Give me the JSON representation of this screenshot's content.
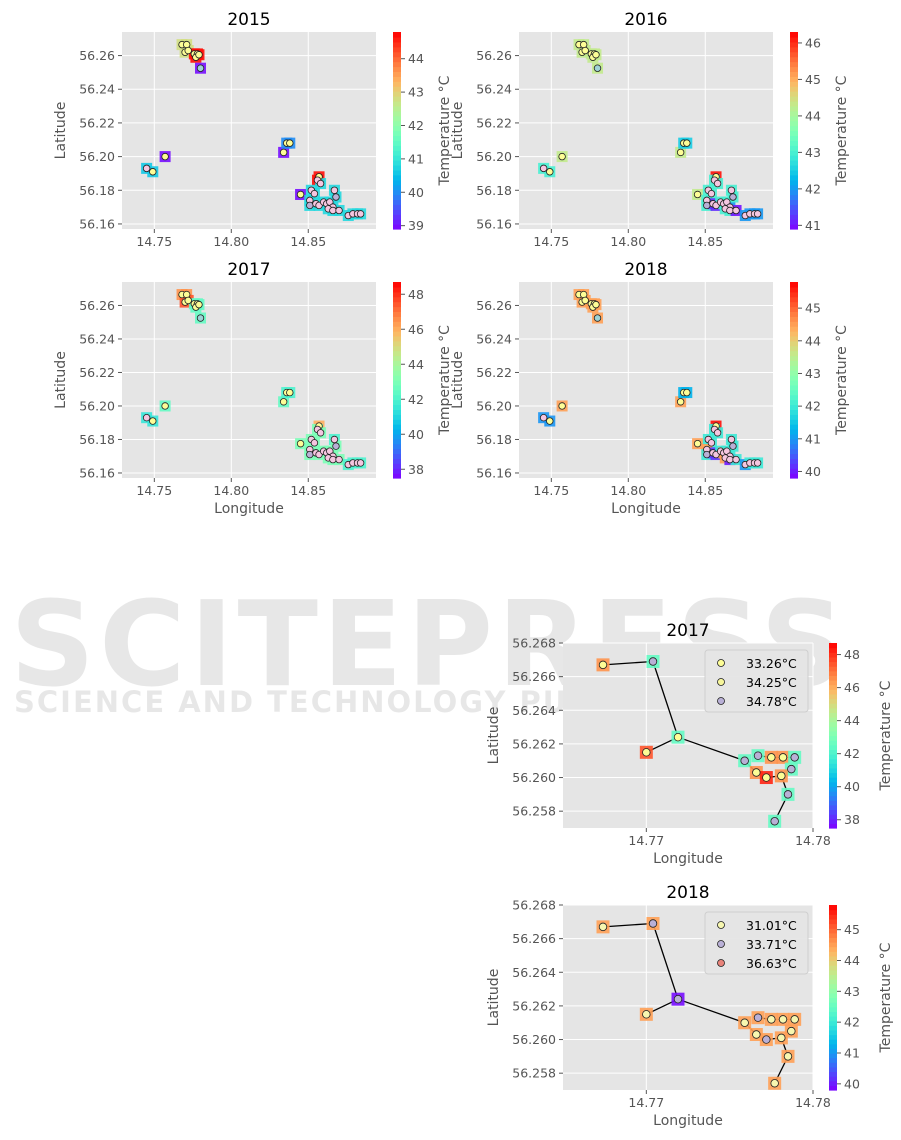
{
  "watermark": {
    "main": "SCITEPRESS",
    "sub": "SCIENCE AND TECHNOLOGY PUBLICATIONS"
  },
  "chart_data": [
    {
      "type": "scatter",
      "title": "2015",
      "xlabel": "",
      "ylabel": "Latitude",
      "colorbar_label": "Temperature °C",
      "xlim": [
        14.729,
        14.894
      ],
      "ylim": [
        56.157,
        56.274
      ],
      "xticks": [
        14.75,
        14.8,
        14.85
      ],
      "yticks": [
        56.16,
        56.18,
        56.2,
        56.22,
        56.24,
        56.26
      ],
      "clim": [
        38.9,
        44.8
      ],
      "cticks": [
        39,
        40,
        41,
        42,
        43,
        44
      ],
      "grid": true,
      "colormap": "rainbow",
      "temps": [
        42.8,
        42.8,
        42.8,
        42.8,
        44.7,
        44.7,
        44.7,
        44.7,
        39,
        40.6,
        40.6,
        39,
        39,
        40,
        40,
        39,
        44.7,
        44.7,
        40.8,
        40.8,
        40.8,
        40.8,
        40.8,
        40.8,
        40.8,
        40.8,
        40.8,
        40.8,
        40.8,
        40.8,
        40.8,
        40.8,
        40.8,
        40.8,
        40.8,
        40.8,
        40.8,
        40.8
      ]
    },
    {
      "type": "scatter",
      "title": "2016",
      "xlabel": "",
      "ylabel": "Latitude",
      "colorbar_label": "Temperature °C",
      "xlim": [
        14.729,
        14.894
      ],
      "ylim": [
        56.157,
        56.274
      ],
      "xticks": [
        14.75,
        14.8,
        14.85
      ],
      "yticks": [
        56.16,
        56.18,
        56.2,
        56.22,
        56.24,
        56.26
      ],
      "clim": [
        40.9,
        46.3
      ],
      "cticks": [
        41,
        42,
        43,
        44,
        45,
        46
      ],
      "grid": true,
      "colormap": "rainbow",
      "temps": [
        44.3,
        44.3,
        44.3,
        44.3,
        44.3,
        44.3,
        44.3,
        44.3,
        44.3,
        43,
        43,
        44.3,
        44.3,
        42.5,
        42.5,
        44.3,
        46.2,
        43,
        43,
        43,
        43,
        43,
        43,
        41.2,
        41.2,
        43,
        43,
        43,
        42,
        43,
        43,
        43,
        43,
        41,
        42,
        42,
        42,
        42
      ]
    },
    {
      "type": "scatter",
      "title": "2017",
      "xlabel": "Longitude",
      "ylabel": "Latitude",
      "colorbar_label": "Temperature °C",
      "xlim": [
        14.729,
        14.894
      ],
      "ylim": [
        56.157,
        56.274
      ],
      "xticks": [
        14.75,
        14.8,
        14.85
      ],
      "yticks": [
        56.16,
        56.18,
        56.2,
        56.22,
        56.24,
        56.26
      ],
      "clim": [
        37.5,
        48.7
      ],
      "cticks": [
        38,
        40,
        42,
        44,
        46,
        48
      ],
      "grid": true,
      "colormap": "rainbow",
      "temps": [
        46.5,
        46.5,
        47.5,
        47.5,
        42.5,
        42.5,
        42.5,
        42.5,
        42.5,
        41.5,
        41.5,
        42.5,
        42.5,
        42,
        42,
        43,
        46,
        43,
        43,
        43,
        43,
        43,
        43,
        43,
        43,
        43,
        43,
        43,
        43,
        42,
        43,
        43,
        43,
        43,
        42,
        42,
        42,
        42
      ]
    },
    {
      "type": "scatter",
      "title": "2018",
      "xlabel": "Longitude",
      "ylabel": "Latitude",
      "colorbar_label": "Temperature °C",
      "xlim": [
        14.729,
        14.894
      ],
      "ylim": [
        56.157,
        56.274
      ],
      "xticks": [
        14.75,
        14.8,
        14.85
      ],
      "yticks": [
        56.16,
        56.18,
        56.2,
        56.22,
        56.24,
        56.26
      ],
      "clim": [
        39.8,
        45.8
      ],
      "cticks": [
        40,
        41,
        42,
        43,
        44,
        45
      ],
      "grid": true,
      "colormap": "rainbow",
      "temps": [
        44.5,
        44.5,
        44.5,
        44.5,
        44.5,
        44.5,
        44.5,
        44.5,
        44.5,
        41,
        41,
        44.5,
        44.5,
        41.3,
        41.3,
        44.5,
        45.7,
        42,
        42,
        42,
        42,
        44.5,
        42,
        40.2,
        40.2,
        42,
        44.5,
        42,
        42,
        42,
        42,
        44.5,
        40,
        42,
        41,
        42,
        42,
        42
      ]
    },
    {
      "type": "scatter",
      "title": "2017",
      "xlabel": "Longitude",
      "ylabel": "Latitude",
      "colorbar_label": "Temperature °C",
      "xlim": [
        14.765,
        14.78
      ],
      "ylim": [
        56.257,
        56.268
      ],
      "xticks": [
        14.77,
        14.78
      ],
      "yticks": [
        56.258,
        56.26,
        56.262,
        56.264,
        56.266,
        56.268
      ],
      "clim": [
        37.5,
        48.7
      ],
      "cticks": [
        38,
        40,
        42,
        44,
        46,
        48
      ],
      "grid": true,
      "colormap": "rainbow",
      "legend_position": "upper right",
      "legend": [
        {
          "label": "33.26°C",
          "color": "#fdfd96"
        },
        {
          "label": "34.25°C",
          "color": "#f6f59a"
        },
        {
          "label": "34.78°C",
          "color": "#b9b0d6"
        }
      ],
      "points": [
        [
          14.7674,
          56.2667,
          46.5,
          0
        ],
        [
          14.7704,
          56.2669,
          42.5,
          2
        ],
        [
          14.7719,
          56.2624,
          42.5,
          0
        ],
        [
          14.77,
          56.2615,
          47.5,
          0
        ],
        [
          14.7759,
          56.261,
          42.5,
          2
        ],
        [
          14.7767,
          56.2613,
          42.5,
          2
        ],
        [
          14.7775,
          56.2612,
          46.5,
          0
        ],
        [
          14.7782,
          56.2612,
          46.5,
          0
        ],
        [
          14.7789,
          56.2612,
          42.5,
          2
        ],
        [
          14.7787,
          56.2605,
          42.5,
          2
        ],
        [
          14.7766,
          56.2603,
          46.5,
          0
        ],
        [
          14.7772,
          56.26,
          48.2,
          0
        ],
        [
          14.7781,
          56.2601,
          46.5,
          0
        ],
        [
          14.7785,
          56.259,
          42.5,
          2
        ],
        [
          14.7777,
          56.2574,
          42.5,
          2
        ]
      ],
      "edges": [
        [
          0,
          1
        ],
        [
          1,
          2
        ],
        [
          2,
          3
        ],
        [
          2,
          4
        ],
        [
          4,
          10
        ],
        [
          10,
          11
        ],
        [
          11,
          12
        ],
        [
          12,
          13
        ],
        [
          13,
          14
        ],
        [
          5,
          6
        ],
        [
          6,
          7
        ],
        [
          7,
          8
        ]
      ]
    },
    {
      "type": "scatter",
      "title": "2018",
      "xlabel": "Longitude",
      "ylabel": "Latitude",
      "colorbar_label": "Temperature °C",
      "xlim": [
        14.765,
        14.78
      ],
      "ylim": [
        56.257,
        56.268
      ],
      "xticks": [
        14.77,
        14.78
      ],
      "yticks": [
        56.258,
        56.26,
        56.262,
        56.264,
        56.266,
        56.268
      ],
      "clim": [
        39.8,
        45.8
      ],
      "cticks": [
        40,
        41,
        42,
        43,
        44,
        45
      ],
      "grid": true,
      "colormap": "rainbow",
      "legend_position": "upper right",
      "legend": [
        {
          "label": "31.01°C",
          "color": "#f7f7b0"
        },
        {
          "label": "33.71°C",
          "color": "#b9b0d6"
        },
        {
          "label": "36.63°C",
          "color": "#e8837a"
        }
      ],
      "points": [
        [
          14.7674,
          56.2667,
          44.5,
          0
        ],
        [
          14.7704,
          56.2669,
          44.5,
          1
        ],
        [
          14.7719,
          56.2624,
          39.9,
          1
        ],
        [
          14.77,
          56.2615,
          44.5,
          0
        ],
        [
          14.7759,
          56.261,
          44.5,
          0
        ],
        [
          14.7767,
          56.2613,
          44.5,
          1
        ],
        [
          14.7775,
          56.2612,
          44.5,
          0
        ],
        [
          14.7782,
          56.2612,
          44.5,
          0
        ],
        [
          14.7789,
          56.2612,
          44.5,
          0
        ],
        [
          14.7787,
          56.2605,
          44.5,
          0
        ],
        [
          14.7766,
          56.2603,
          44.5,
          0
        ],
        [
          14.7772,
          56.26,
          44.5,
          1
        ],
        [
          14.7781,
          56.2601,
          44.5,
          0
        ],
        [
          14.7785,
          56.259,
          44.5,
          0
        ],
        [
          14.7777,
          56.2574,
          44.5,
          0
        ]
      ],
      "edges": [
        [
          0,
          1
        ],
        [
          1,
          2
        ],
        [
          2,
          3
        ],
        [
          2,
          4
        ],
        [
          4,
          10
        ],
        [
          10,
          11
        ],
        [
          11,
          12
        ],
        [
          12,
          13
        ],
        [
          13,
          14
        ],
        [
          5,
          6
        ],
        [
          6,
          7
        ],
        [
          7,
          8
        ]
      ]
    }
  ],
  "locations": [
    [
      14.768,
      56.2665
    ],
    [
      14.771,
      56.2665
    ],
    [
      14.77,
      56.262
    ],
    [
      14.772,
      56.263
    ],
    [
      14.776,
      56.261
    ],
    [
      14.778,
      56.261
    ],
    [
      14.777,
      56.259
    ],
    [
      14.779,
      56.2605
    ],
    [
      14.78,
      56.2525
    ],
    [
      14.745,
      56.193
    ],
    [
      14.749,
      56.191
    ],
    [
      14.757,
      56.2
    ],
    [
      14.834,
      56.2025
    ],
    [
      14.836,
      56.208
    ],
    [
      14.838,
      56.208
    ],
    [
      14.845,
      56.1775
    ],
    [
      14.857,
      56.188
    ],
    [
      14.856,
      56.186
    ],
    [
      14.858,
      56.184
    ],
    [
      14.852,
      56.18
    ],
    [
      14.854,
      56.178
    ],
    [
      14.851,
      56.174
    ],
    [
      14.851,
      56.171
    ],
    [
      14.855,
      56.172
    ],
    [
      14.857,
      56.171
    ],
    [
      14.86,
      56.173
    ],
    [
      14.862,
      56.172
    ],
    [
      14.864,
      56.173
    ],
    [
      14.866,
      56.17
    ],
    [
      14.867,
      56.18
    ],
    [
      14.868,
      56.176
    ],
    [
      14.863,
      56.169
    ],
    [
      14.866,
      56.168
    ],
    [
      14.87,
      56.168
    ],
    [
      14.876,
      56.165
    ],
    [
      14.879,
      56.166
    ],
    [
      14.882,
      56.166
    ],
    [
      14.884,
      56.166
    ]
  ],
  "inner_colors": [
    "#fdfd96",
    "#f5c6e0",
    "#b9b0d6",
    "#9fd3d6"
  ]
}
